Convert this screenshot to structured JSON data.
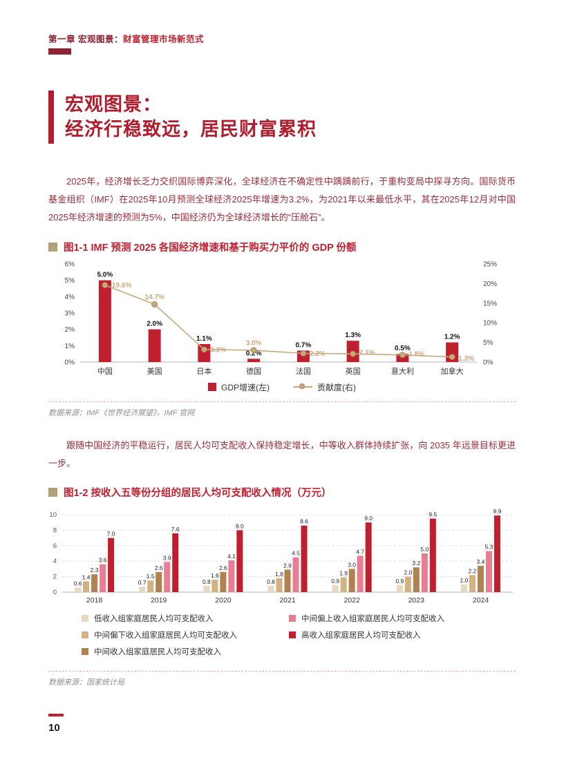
{
  "header": {
    "chapter_label": "第一章 宏观图景：",
    "chapter_title": "财富管理市场新范式"
  },
  "title": {
    "line1": "宏观图景：",
    "line2": "经济行稳致远，居民财富累积"
  },
  "paragraphs": {
    "p1": "2025年，经济增长乏力交织国际博弈深化，全球经济在不确定性中踽踽前行，于重构变局中探寻方向。国际货币基金组织（IMF）在2025年10月预测全球经济2025年增速为3.2%，为2021年以来最低水平，其在2025年12月对中国2025年经济增速的预测为5%，中国经济仍为全球经济增长的“压舱石”。",
    "p2": "跟随中国经济的平稳运行，居民人均可支配收入保持稳定增长，中等收入群体持续扩张，向 2035 年远景目标更进一步。"
  },
  "figure1": {
    "title": "图1-1 IMF 预测 2025 各国经济增速和基于购买力平价的 GDP 份额",
    "source": "数据来源：IMF《世界经济展望》，IMF 官网"
  },
  "figure2": {
    "title": "图1-2 按收入五等份分组的居民人均可支配收入情况（万元）",
    "source": "数据来源：国家统计局"
  },
  "footer": {
    "page_number": "10"
  },
  "colors": {
    "accent_red": "#c0202e",
    "dark_maroon": "#8b2332",
    "title_red": "#b01e2e",
    "body_text_red": "#9d2b3a",
    "tan_line": "#c9a87c",
    "khaki_bullet": "#b2a077",
    "separator_pink": "#e5aeb6"
  },
  "chart_data": [
    {
      "type": "bar",
      "overlay": "line",
      "title": "IMF 预测 2025 各国经济增速和基于购买力平价的 GDP 份额",
      "categories": [
        "中国",
        "美国",
        "日本",
        "德国",
        "法国",
        "英国",
        "意大利",
        "加拿大"
      ],
      "series": [
        {
          "name": "GDP增速(左)",
          "kind": "bar",
          "axis": "left",
          "color": "#c01f2e",
          "values": [
            5.0,
            2.0,
            1.1,
            0.2,
            0.7,
            1.3,
            0.5,
            1.2
          ],
          "labels": [
            "5.0%",
            "2.0%",
            "1.1%",
            "0.2%",
            "0.7%",
            "1.3%",
            "0.5%",
            "1.2%"
          ]
        },
        {
          "name": "贡献度(右)",
          "kind": "line",
          "axis": "right",
          "color": "#c9a87c",
          "values": [
            19.6,
            14.7,
            3.2,
            3.0,
            2.2,
            2.1,
            1.8,
            1.3
          ],
          "labels": [
            "19.6%",
            "14.7%",
            "3.2%",
            "3.0%",
            "2.2%",
            "2.1%",
            "1.8%",
            "1.3%"
          ]
        }
      ],
      "left_axis": {
        "min": 0,
        "max": 6,
        "ticks": [
          "0%",
          "1%",
          "2%",
          "3%",
          "4%",
          "5%",
          "6%"
        ]
      },
      "right_axis": {
        "min": 0,
        "max": 25,
        "ticks": [
          "0%",
          "5%",
          "10%",
          "15%",
          "20%",
          "25%"
        ]
      },
      "grid": "off",
      "legend_position": "bottom"
    },
    {
      "type": "bar",
      "title": "按收入五等份分组的居民人均可支配收入情况（万元）",
      "categories": [
        "2018",
        "2019",
        "2020",
        "2021",
        "2022",
        "2023",
        "2024"
      ],
      "series": [
        {
          "name": "低收入组家庭居民人均可支配收入",
          "color": "#e7d9bd",
          "values": [
            0.6,
            0.7,
            0.8,
            0.8,
            0.9,
            0.9,
            1.0
          ]
        },
        {
          "name": "中间偏下收入组家庭居民人均可支配收入",
          "color": "#d2b183",
          "values": [
            1.4,
            1.5,
            1.6,
            1.8,
            1.9,
            2.0,
            2.2
          ]
        },
        {
          "name": "中间收入组家庭居民人均可支配收入",
          "color": "#b0824f",
          "values": [
            2.3,
            2.6,
            2.6,
            2.9,
            3.0,
            3.2,
            3.4
          ]
        },
        {
          "name": "中间偏上收入组家庭居民人均可支配收入",
          "color": "#e87e91",
          "values": [
            3.6,
            3.9,
            4.1,
            4.5,
            4.7,
            5.0,
            5.3
          ]
        },
        {
          "name": "高收入组家庭居民人均可支配收入",
          "color": "#c01f2e",
          "values": [
            7.0,
            7.6,
            8.0,
            8.6,
            9.0,
            9.5,
            9.9
          ]
        }
      ],
      "ylim": [
        0,
        10
      ],
      "y_ticks": [
        0,
        2,
        4,
        6,
        8,
        10
      ],
      "grid": "dashed-horizontal",
      "legend_position": "bottom"
    }
  ]
}
